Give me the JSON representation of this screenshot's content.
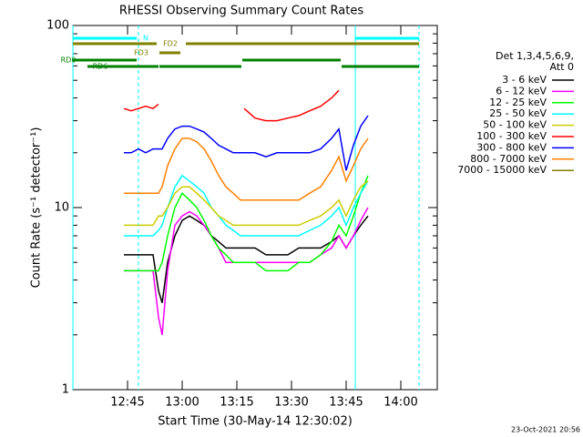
{
  "chart_data": {
    "type": "line",
    "title": "RHESSI Observing Summary Count Rates",
    "xlabel": "Start Time (30-May-14 12:30:02)",
    "ylabel": "Count Rate (s⁻¹ detector⁻¹)",
    "footer": "23-Oct-2021 20:56",
    "legend_header": [
      "Det 1,3,4,5,6,9,",
      "Att 0"
    ],
    "log_y": true,
    "xlim": [
      0,
      100
    ],
    "ylim": [
      1,
      100
    ],
    "xticks": [
      {
        "value": 15,
        "label": "12:45"
      },
      {
        "value": 30,
        "label": "13:00"
      },
      {
        "value": 45,
        "label": "13:15"
      },
      {
        "value": 60,
        "label": "13:30"
      },
      {
        "value": 75,
        "label": "13:45"
      },
      {
        "value": 90,
        "label": "14:00"
      }
    ],
    "yticks": [
      1,
      10,
      100
    ],
    "yminorticks": [
      2,
      3,
      4,
      5,
      6,
      7,
      8,
      9,
      20,
      30,
      40,
      50,
      60,
      70,
      80,
      90
    ],
    "x": [
      14,
      16,
      18,
      20,
      22,
      23.5,
      24.5,
      26,
      28,
      30,
      32,
      34,
      36,
      38,
      40,
      42,
      44,
      46,
      47,
      50,
      53,
      56,
      59,
      62,
      65,
      68,
      71,
      73,
      75,
      77,
      79,
      81
    ],
    "series": [
      {
        "name": "3 - 6 keV",
        "color": "#000000",
        "values": [
          5.5,
          5.5,
          5.5,
          5.5,
          5.5,
          3.5,
          3,
          5,
          7,
          8.5,
          9,
          8.5,
          8,
          7,
          6.5,
          6,
          6,
          6,
          6,
          6,
          5.5,
          5.5,
          5.5,
          6,
          6,
          6,
          6.5,
          7,
          6,
          7,
          8,
          9
        ]
      },
      {
        "name": "6 - 12 keV",
        "color": "#ff00ff",
        "values": [
          4.5,
          4.5,
          4.5,
          4.5,
          4.5,
          2.5,
          2,
          4.5,
          8,
          9,
          9.5,
          9,
          8,
          7,
          6,
          5,
          5,
          5,
          5,
          5,
          5,
          5,
          5,
          5,
          5,
          5.5,
          6,
          7,
          6,
          7,
          8.5,
          10
        ]
      },
      {
        "name": "12 - 25 keV",
        "color": "#00ff00",
        "values": [
          4.5,
          4.5,
          4.5,
          4.5,
          4.5,
          4.5,
          5,
          7,
          10,
          12,
          11,
          10,
          8.5,
          7,
          6,
          5.5,
          5,
          5,
          5,
          5,
          4.5,
          4.5,
          4.5,
          5,
          5,
          5.5,
          6.5,
          8,
          7,
          9,
          12,
          15
        ]
      },
      {
        "name": "25 - 50 keV",
        "color": "#00ffff",
        "values": [
          7,
          7,
          7,
          7,
          7,
          7.5,
          8,
          10,
          13,
          15,
          14,
          13,
          12,
          10,
          9,
          8,
          7.5,
          7,
          7,
          7,
          7,
          7,
          7,
          7,
          7.5,
          8,
          9,
          10,
          8,
          10,
          12,
          14
        ]
      },
      {
        "name": "50 - 100 keV",
        "color": "#cccc00",
        "values": [
          8,
          8,
          8,
          8,
          8,
          9,
          9,
          10,
          12,
          13,
          13,
          12,
          11,
          10,
          9,
          8.5,
          8,
          8,
          8,
          8,
          8,
          8,
          8,
          8,
          8.5,
          9,
          10,
          11,
          9,
          11,
          13,
          14
        ]
      },
      {
        "name": "100 - 300 keV",
        "color": "#ff0000",
        "values": [
          35,
          34,
          35,
          36,
          35,
          37,
          null,
          null,
          null,
          null,
          null,
          null,
          null,
          null,
          null,
          null,
          null,
          null,
          35,
          31,
          30,
          30,
          31,
          32,
          34,
          36,
          40,
          44,
          null,
          null,
          null,
          null
        ]
      },
      {
        "name": "300 - 800 keV",
        "color": "#0000ff",
        "values": [
          20,
          20,
          21,
          20,
          21,
          21,
          21,
          24,
          27,
          28,
          28,
          27,
          26,
          24,
          22,
          21,
          20,
          20,
          20,
          20,
          19,
          20,
          20,
          20,
          20,
          21,
          24,
          27,
          16,
          22,
          28,
          32
        ]
      },
      {
        "name": "800 - 7000 keV",
        "color": "#ff8000",
        "values": [
          12,
          12,
          12,
          12,
          12,
          12,
          13,
          17,
          21,
          24,
          24,
          23,
          21,
          18,
          15,
          13,
          12,
          11,
          11,
          11,
          11,
          11,
          11,
          11,
          12,
          13,
          16,
          19,
          14,
          17,
          21,
          24
        ]
      },
      {
        "name": "7000 - 15000 keV",
        "color": "#808000",
        "values": [
          null,
          null,
          null,
          null,
          null,
          null,
          null,
          null,
          null,
          null,
          null,
          null,
          null,
          null,
          null,
          null,
          null,
          null,
          null,
          null,
          null,
          null,
          null,
          null,
          null,
          null,
          null,
          null,
          null,
          null,
          null,
          null
        ]
      }
    ],
    "state_bars": [
      {
        "label": "N",
        "color": "#00ffff",
        "segments": [
          [
            0,
            17.5
          ],
          [
            77.5,
            95
          ]
        ]
      },
      {
        "label": "FD2",
        "color": "#808000",
        "segments": [
          [
            0,
            23
          ],
          [
            31,
            95
          ]
        ]
      },
      {
        "label": "FD3",
        "color": "#808000",
        "segments": [
          [
            23.75,
            29.5
          ]
        ]
      },
      {
        "label": "RD0",
        "color": "#008000",
        "segments": [
          [
            0,
            17.5
          ],
          [
            46.5,
            73.5
          ]
        ]
      },
      {
        "label": "RD6",
        "color": "#008000",
        "segments": [
          [
            4,
            23.5
          ],
          [
            23.75,
            46.25
          ],
          [
            73.75,
            95
          ]
        ]
      }
    ],
    "state_lines": [
      {
        "x": 0,
        "dashed": false
      },
      {
        "x": 18,
        "dashed": true
      },
      {
        "x": 77.5,
        "dashed": false
      },
      {
        "x": 95,
        "dashed": true
      }
    ]
  }
}
